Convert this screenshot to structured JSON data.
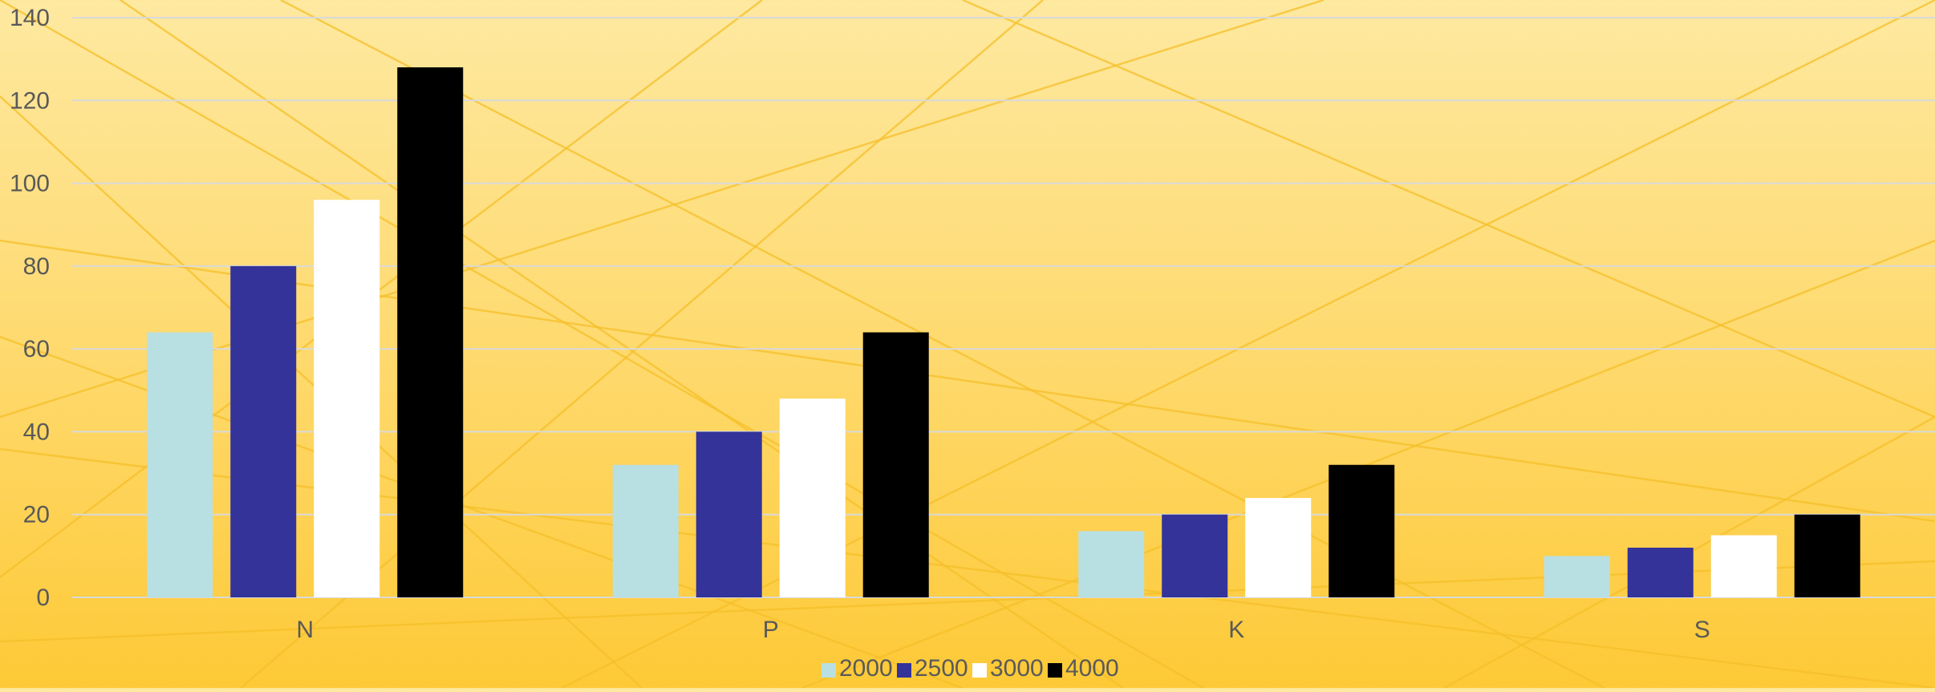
{
  "chart_data": {
    "type": "bar",
    "title": "",
    "xlabel": "",
    "ylabel": "",
    "categories": [
      "N",
      "P",
      "K",
      "S"
    ],
    "series": [
      {
        "name": "2000",
        "values": [
          64,
          32,
          16,
          10
        ],
        "color": "#b8dfe2"
      },
      {
        "name": "2500",
        "values": [
          80,
          40,
          20,
          12
        ],
        "color": "#33339a"
      },
      {
        "name": "3000",
        "values": [
          96,
          48,
          24,
          15
        ],
        "color": "#ffffff"
      },
      {
        "name": "4000",
        "values": [
          128,
          64,
          32,
          20
        ],
        "color": "#000000"
      }
    ],
    "ylim": [
      0,
      140
    ],
    "yticks": [
      "0",
      "20",
      "40",
      "60",
      "80",
      "100",
      "120",
      "140"
    ],
    "grid": true,
    "legend_position": "bottom"
  },
  "colors": {
    "background_top": "#fee9a1",
    "background_bottom": "#fdc936",
    "gridline": "#d9d9d9",
    "axis_text": "#595959",
    "decorative_lines": "#f5c02a"
  }
}
